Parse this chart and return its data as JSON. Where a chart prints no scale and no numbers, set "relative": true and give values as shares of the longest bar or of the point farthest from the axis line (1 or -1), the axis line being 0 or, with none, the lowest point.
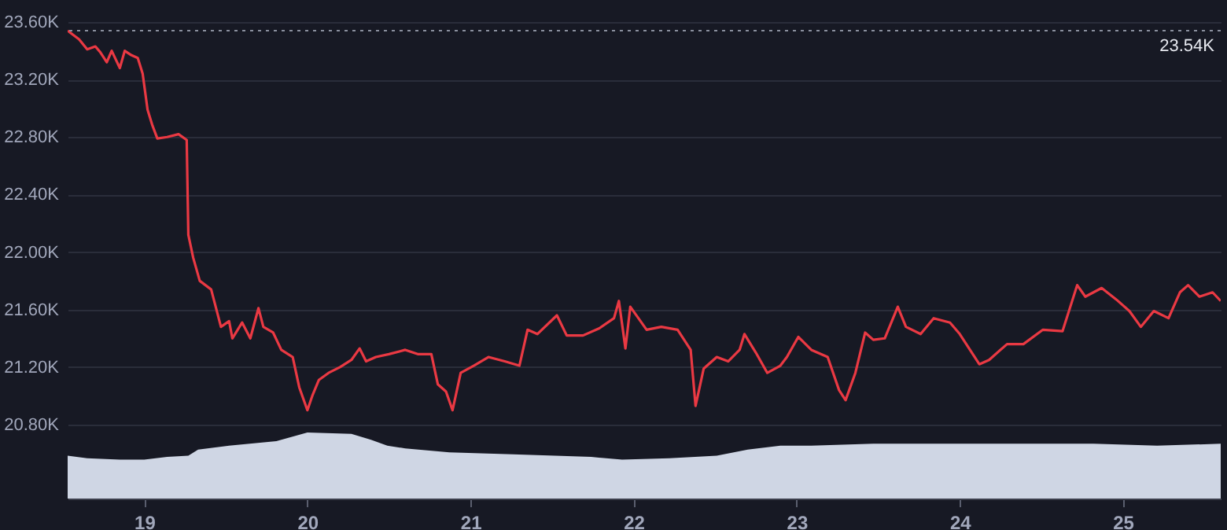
{
  "chart_data": [
    {
      "type": "line",
      "tick_labels": "y",
      "grid": "y",
      "xlim": [
        18.53,
        25.6
      ],
      "ylim": [
        20800,
        23600
      ],
      "yticks": [
        {
          "value": 20800,
          "label": "20.80K"
        },
        {
          "value": 21200,
          "label": "21.20K"
        },
        {
          "value": 21600,
          "label": "21.60K"
        },
        {
          "value": 22000,
          "label": "22.00K"
        },
        {
          "value": 22400,
          "label": "22.40K"
        },
        {
          "value": 22800,
          "label": "22.80K"
        },
        {
          "value": 23200,
          "label": "23.20K"
        },
        {
          "value": 23600,
          "label": "23.60K"
        }
      ],
      "ref_lines": [
        {
          "axis": "y",
          "value": 23540,
          "label": "23.54K",
          "line_style": "dotted",
          "color": "#8a8f9e"
        }
      ],
      "series": [
        {
          "color": "#ea3943",
          "x": [
            18.53,
            18.6,
            18.65,
            18.7,
            18.73,
            18.77,
            18.8,
            18.85,
            18.88,
            18.92,
            18.96,
            18.99,
            19.02,
            19.05,
            19.08,
            19.14,
            19.21,
            19.26,
            19.27,
            19.3,
            19.34,
            19.41,
            19.47,
            19.52,
            19.54,
            19.6,
            19.65,
            19.7,
            19.73,
            19.79,
            19.84,
            19.91,
            19.95,
            20.0,
            20.03,
            20.07,
            20.13,
            20.2,
            20.27,
            20.32,
            20.36,
            20.42,
            20.5,
            20.6,
            20.68,
            20.76,
            20.8,
            20.85,
            20.89,
            20.94,
            21.02,
            21.11,
            21.21,
            21.3,
            21.35,
            21.41,
            21.53,
            21.59,
            21.69,
            21.79,
            21.88,
            21.91,
            21.95,
            21.98,
            22.08,
            22.17,
            22.27,
            22.35,
            22.38,
            22.43,
            22.51,
            22.58,
            22.65,
            22.68,
            22.75,
            22.82,
            22.9,
            22.94,
            23.01,
            23.09,
            23.19,
            23.26,
            23.3,
            23.36,
            23.42,
            23.47,
            23.54,
            23.62,
            23.67,
            23.76,
            23.84,
            23.94,
            24.0,
            24.12,
            24.18,
            24.29,
            24.39,
            24.51,
            24.63,
            24.72,
            24.77,
            24.87,
            24.96,
            25.04,
            25.11,
            25.19,
            25.28,
            25.35,
            25.4,
            25.47,
            25.55,
            25.6
          ],
          "values": [
            23540,
            23480,
            23410,
            23430,
            23390,
            23320,
            23400,
            23280,
            23400,
            23370,
            23350,
            23240,
            22990,
            22880,
            22790,
            22800,
            22820,
            22780,
            22120,
            21960,
            21800,
            21740,
            21480,
            21520,
            21400,
            21510,
            21400,
            21610,
            21480,
            21440,
            21320,
            21270,
            21060,
            20900,
            21000,
            21110,
            21160,
            21200,
            21250,
            21330,
            21240,
            21270,
            21290,
            21320,
            21290,
            21290,
            21080,
            21030,
            20900,
            21160,
            21210,
            21270,
            21240,
            21210,
            21460,
            21430,
            21560,
            21420,
            21420,
            21470,
            21540,
            21660,
            21330,
            21620,
            21460,
            21480,
            21460,
            21320,
            20930,
            21190,
            21270,
            21240,
            21320,
            21430,
            21300,
            21160,
            21210,
            21270,
            21410,
            21320,
            21270,
            21040,
            20970,
            21160,
            21440,
            21390,
            21400,
            21620,
            21480,
            21430,
            21540,
            21510,
            21430,
            21220,
            21250,
            21360,
            21360,
            21460,
            21450,
            21770,
            21690,
            21750,
            21670,
            21590,
            21480,
            21590,
            21540,
            21720,
            21770,
            21690,
            21720,
            21660
          ]
        }
      ]
    },
    {
      "type": "area",
      "relative": true,
      "xlim": [
        18.53,
        25.6
      ],
      "xticks": [
        19,
        20,
        21,
        22,
        23,
        24,
        25
      ],
      "series": [
        {
          "color": "#cfd6e4",
          "x": [
            18.53,
            18.65,
            18.85,
            19.0,
            19.14,
            19.27,
            19.33,
            19.52,
            19.81,
            20.0,
            20.27,
            20.39,
            20.49,
            20.6,
            20.87,
            21.26,
            21.74,
            21.93,
            22.22,
            22.51,
            22.7,
            22.9,
            23.09,
            23.47,
            23.86,
            24.34,
            24.82,
            25.21,
            25.6
          ],
          "values": [
            0.65,
            0.61,
            0.59,
            0.59,
            0.63,
            0.65,
            0.74,
            0.8,
            0.87,
            1,
            0.98,
            0.89,
            0.8,
            0.76,
            0.7,
            0.67,
            0.63,
            0.59,
            0.61,
            0.65,
            0.74,
            0.8,
            0.8,
            0.83,
            0.83,
            0.83,
            0.83,
            0.8,
            0.83
          ]
        }
      ]
    }
  ]
}
